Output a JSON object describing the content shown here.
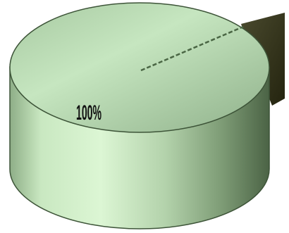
{
  "chart_data": {
    "type": "pie",
    "style": "3d-cylinder",
    "title": "",
    "slices": [
      {
        "value": 100,
        "label": "100%",
        "color": "#b9dcb4"
      }
    ],
    "legend": "none"
  },
  "colors": {
    "top_face_light": "#c6e6c0",
    "top_face_dark": "#8fb28b",
    "side_light": "#d9f5d2",
    "side_mid": "#9fbf98",
    "side_dark": "#4c6645",
    "box_color": "#3a3a24",
    "seam": "#3d5438",
    "background": "#ffffff"
  }
}
